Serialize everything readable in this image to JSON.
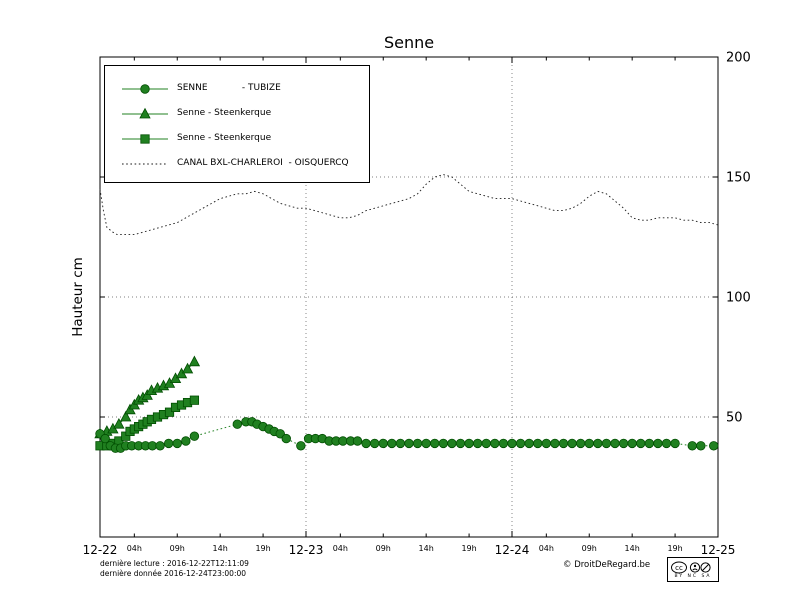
{
  "footer": {
    "line1": "dernière lecture : 2016-12-22T12:11:09",
    "line2": "dernière donnée  2016-12-24T23:00:00",
    "copyright": "© DroitDeRegard.be",
    "cc_text": "BY NC SA"
  },
  "chart_data": {
    "type": "line",
    "title": "Senne",
    "ylabel": "Hauteur cm",
    "ylim": [
      0,
      200
    ],
    "xlim_hours": [
      0,
      72
    ],
    "y_ticks": [
      50,
      100,
      150,
      200
    ],
    "grid": {
      "h_lines": [
        50,
        100,
        150
      ],
      "v_lines": [
        24,
        48
      ]
    },
    "x_major_ticks": [
      {
        "hour": 0,
        "label": "12-22"
      },
      {
        "hour": 24,
        "label": "12-23"
      },
      {
        "hour": 48,
        "label": "12-24"
      },
      {
        "hour": 72,
        "label": "12-25"
      }
    ],
    "x_minor_ticks": [
      {
        "hour": 4,
        "label": "04h"
      },
      {
        "hour": 9,
        "label": "09h"
      },
      {
        "hour": 14,
        "label": "14h"
      },
      {
        "hour": 19,
        "label": "19h"
      },
      {
        "hour": 28,
        "label": "04h"
      },
      {
        "hour": 33,
        "label": "09h"
      },
      {
        "hour": 38,
        "label": "14h"
      },
      {
        "hour": 43,
        "label": "19h"
      },
      {
        "hour": 52,
        "label": "04h"
      },
      {
        "hour": 57,
        "label": "09h"
      },
      {
        "hour": 62,
        "label": "14h"
      },
      {
        "hour": 67,
        "label": "19h"
      }
    ],
    "series": [
      {
        "name": "SENNE            - TUBIZE",
        "marker": "circle",
        "line": "dotted",
        "width": 1,
        "color": "#208020",
        "edge": "#004d00",
        "points": [
          [
            0,
            43
          ],
          [
            0.6,
            41
          ],
          [
            1.2,
            38
          ],
          [
            1.8,
            37
          ],
          [
            2.4,
            37
          ],
          [
            3,
            38
          ],
          [
            3.7,
            38
          ],
          [
            4.5,
            38
          ],
          [
            5.3,
            38
          ],
          [
            6.1,
            38
          ],
          [
            7,
            38
          ],
          [
            8,
            39
          ],
          [
            9,
            39
          ],
          [
            10,
            40
          ],
          [
            11,
            42
          ],
          [
            16,
            47
          ],
          [
            17,
            48
          ],
          [
            17.7,
            48
          ],
          [
            18.3,
            47
          ],
          [
            19,
            46
          ],
          [
            19.7,
            45
          ],
          [
            20.3,
            44
          ],
          [
            21,
            43
          ],
          [
            21.7,
            41
          ],
          [
            23.4,
            38
          ],
          [
            24.3,
            41
          ],
          [
            25.1,
            41
          ],
          [
            25.9,
            41
          ],
          [
            26.7,
            40
          ],
          [
            27.5,
            40
          ],
          [
            28.3,
            40
          ],
          [
            29.2,
            40
          ],
          [
            30,
            40
          ],
          [
            31,
            39
          ],
          [
            32,
            39
          ],
          [
            33,
            39
          ],
          [
            34,
            39
          ],
          [
            35,
            39
          ],
          [
            36,
            39
          ],
          [
            37,
            39
          ],
          [
            38,
            39
          ],
          [
            39,
            39
          ],
          [
            40,
            39
          ],
          [
            41,
            39
          ],
          [
            42,
            39
          ],
          [
            43,
            39
          ],
          [
            44,
            39
          ],
          [
            45,
            39
          ],
          [
            46,
            39
          ],
          [
            47,
            39
          ],
          [
            48,
            39
          ],
          [
            49,
            39
          ],
          [
            50,
            39
          ],
          [
            51,
            39
          ],
          [
            52,
            39
          ],
          [
            53,
            39
          ],
          [
            54,
            39
          ],
          [
            55,
            39
          ],
          [
            56,
            39
          ],
          [
            57,
            39
          ],
          [
            58,
            39
          ],
          [
            59,
            39
          ],
          [
            60,
            39
          ],
          [
            61,
            39
          ],
          [
            62,
            39
          ],
          [
            63,
            39
          ],
          [
            64,
            39
          ],
          [
            65,
            39
          ],
          [
            66,
            39
          ],
          [
            67,
            39
          ],
          [
            69,
            38
          ],
          [
            70,
            38
          ],
          [
            71.5,
            38
          ]
        ]
      },
      {
        "name": "Senne - Steenkerque",
        "marker": "triangle",
        "line": "solid",
        "width": 1,
        "color": "#208020",
        "edge": "#004d00",
        "points": [
          [
            0,
            43
          ],
          [
            0.8,
            44
          ],
          [
            1.5,
            45
          ],
          [
            2.2,
            47
          ],
          [
            3,
            50
          ],
          [
            3.5,
            53
          ],
          [
            4,
            55
          ],
          [
            4.5,
            57
          ],
          [
            5,
            58
          ],
          [
            5.5,
            59
          ],
          [
            6,
            61
          ],
          [
            6.7,
            62
          ],
          [
            7.4,
            63
          ],
          [
            8.1,
            64
          ],
          [
            8.8,
            66
          ],
          [
            9.5,
            68
          ],
          [
            10.2,
            70
          ],
          [
            11,
            73
          ]
        ]
      },
      {
        "name": "Senne - Steenkerque",
        "marker": "square",
        "line": "solid",
        "width": 1,
        "color": "#208020",
        "edge": "#004d00",
        "points": [
          [
            0,
            38
          ],
          [
            0.8,
            38
          ],
          [
            1.5,
            39
          ],
          [
            2.2,
            40
          ],
          [
            3,
            42
          ],
          [
            3.5,
            44
          ],
          [
            4,
            45
          ],
          [
            4.5,
            46
          ],
          [
            5,
            47
          ],
          [
            5.5,
            48
          ],
          [
            6,
            49
          ],
          [
            6.7,
            50
          ],
          [
            7.4,
            51
          ],
          [
            8.1,
            52
          ],
          [
            8.8,
            54
          ],
          [
            9.5,
            55
          ],
          [
            10.2,
            56
          ],
          [
            11,
            57
          ]
        ]
      },
      {
        "name": "CANAL BXL-CHARLEROI  - OISQUERCQ",
        "marker": "none",
        "line": "dotted",
        "width": 0.9,
        "color": "#1a1a1a",
        "edge": "#1a1a1a",
        "points": [
          [
            0,
            145
          ],
          [
            0.4,
            136
          ],
          [
            0.8,
            129
          ],
          [
            1.5,
            127
          ],
          [
            2,
            126
          ],
          [
            3,
            126
          ],
          [
            4,
            126
          ],
          [
            5,
            127
          ],
          [
            6,
            128
          ],
          [
            7,
            129
          ],
          [
            8,
            130
          ],
          [
            9,
            131
          ],
          [
            10,
            133
          ],
          [
            11,
            135
          ],
          [
            12,
            137
          ],
          [
            13,
            139
          ],
          [
            14,
            141
          ],
          [
            15,
            142
          ],
          [
            16,
            143
          ],
          [
            17,
            143
          ],
          [
            18,
            144
          ],
          [
            19,
            143
          ],
          [
            20,
            141
          ],
          [
            21,
            139
          ],
          [
            22,
            138
          ],
          [
            23,
            137
          ],
          [
            24,
            137
          ],
          [
            25,
            136
          ],
          [
            26,
            135
          ],
          [
            27,
            134
          ],
          [
            28,
            133
          ],
          [
            29,
            133
          ],
          [
            30,
            134
          ],
          [
            31,
            136
          ],
          [
            32,
            137
          ],
          [
            33,
            138
          ],
          [
            34,
            139
          ],
          [
            35,
            140
          ],
          [
            36,
            141
          ],
          [
            37,
            143
          ],
          [
            38,
            147
          ],
          [
            39,
            150
          ],
          [
            40,
            151
          ],
          [
            41,
            150
          ],
          [
            42,
            147
          ],
          [
            43,
            144
          ],
          [
            44,
            143
          ],
          [
            45,
            142
          ],
          [
            46,
            141
          ],
          [
            47,
            141
          ],
          [
            48,
            141
          ],
          [
            49,
            140
          ],
          [
            50,
            139
          ],
          [
            51,
            138
          ],
          [
            52,
            137
          ],
          [
            53,
            136
          ],
          [
            54,
            136
          ],
          [
            55,
            137
          ],
          [
            56,
            139
          ],
          [
            57,
            142
          ],
          [
            58,
            144
          ],
          [
            59,
            143
          ],
          [
            60,
            140
          ],
          [
            61,
            137
          ],
          [
            62,
            133
          ],
          [
            63,
            132
          ],
          [
            64,
            132
          ],
          [
            65,
            133
          ],
          [
            66,
            133
          ],
          [
            67,
            133
          ],
          [
            68,
            132
          ],
          [
            69,
            132
          ],
          [
            70,
            131
          ],
          [
            71,
            131
          ],
          [
            72,
            130
          ]
        ]
      }
    ]
  }
}
